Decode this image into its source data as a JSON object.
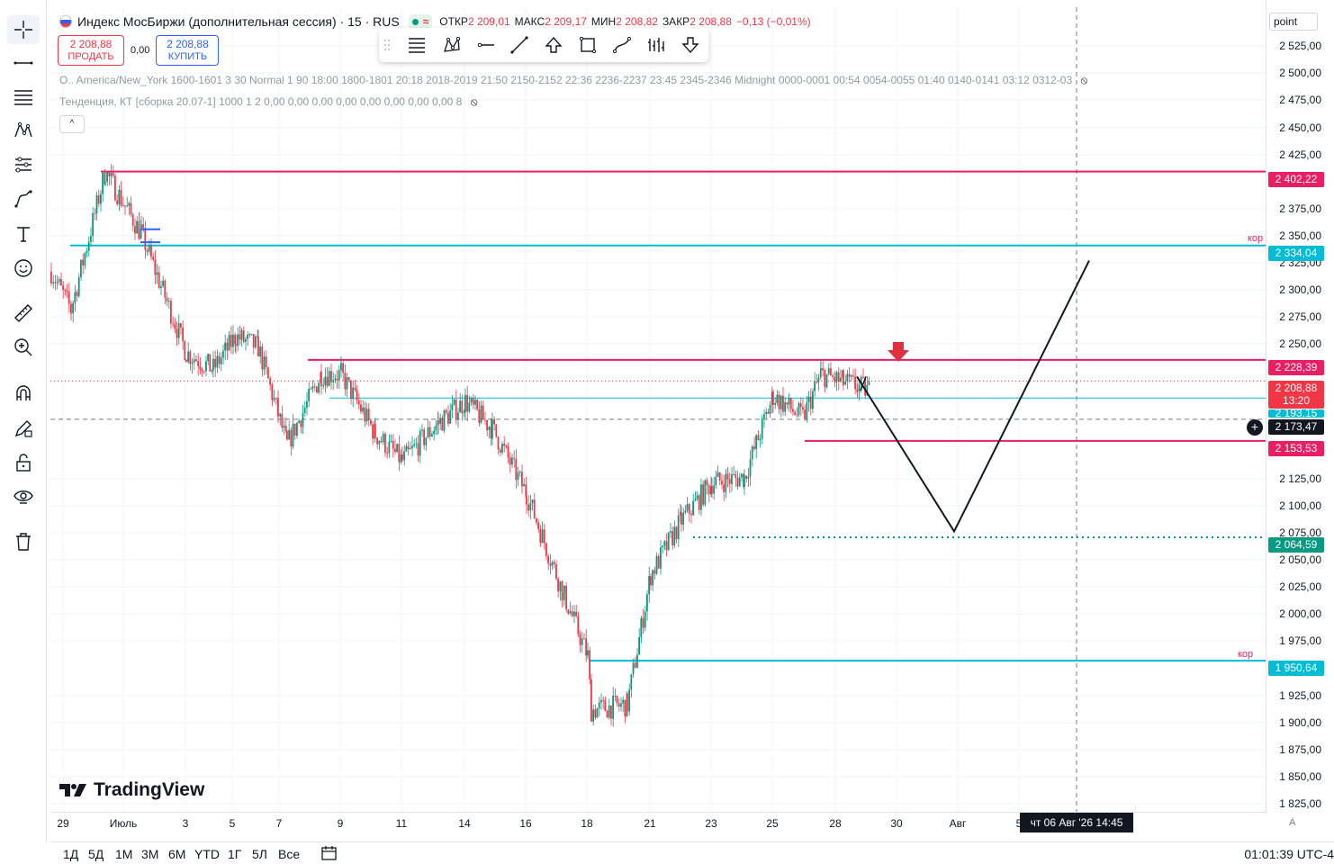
{
  "symbol": {
    "name": "Индекс МосБиржи (дополнительная сессия) · 15 · RUS",
    "open_label": "ОТКР",
    "open": "2 209,01",
    "high_label": "МАКС",
    "high": "2 209,17",
    "low_label": "МИН",
    "low": "2 208,82",
    "close_label": "ЗАКР",
    "close": "2 208,88",
    "change": "−0,13 (−0,01%)",
    "live_wave": "≈"
  },
  "trade": {
    "sell_price": "2 208,88",
    "sell_label": "ПРОДАТЬ",
    "spread": "0,00",
    "buy_price": "2 208,88",
    "buy_label": "КУПИТЬ"
  },
  "indicators": {
    "sessions": "O.. America/New_York 1600-1601 3 30 Normal 1 90 18:00 1800-1801 20:18 2018-2019 21:50 2150-2152 22:36 2236-2237 23:45 2345-2346 Midnight 0000-0001 00:54 0054-0055 01:40 0140-0141 03:12 0312-03",
    "trend": "Тенденция, КТ [сборка 20.07-1] 1000 1 2 0,00 0,00 0,00 0,00 0,00 0,00 0,00 0,00 8",
    "collapse": "^"
  },
  "price_axis": {
    "mode": "point",
    "ticks": [
      "2 525,00",
      "2 500,00",
      "2 475,00",
      "2 450,00",
      "2 425,00",
      "2 375,00",
      "2 350,00",
      "2 325,00",
      "2 300,00",
      "2 275,00",
      "2 250,00",
      "2 125,00",
      "2 100,00",
      "2 075,00",
      "2 050,00",
      "2 025,00",
      "2 000,00",
      "1 975,00",
      "1 925,00",
      "1 900,00",
      "1 875,00",
      "1 850,00",
      "1 825,00"
    ],
    "labels": {
      "level_2402": "2 402,22",
      "level_2334": "2 334,04",
      "level_2228": "2 228,39",
      "last_price": "2 208,88",
      "countdown": "13:20",
      "level_2193": "2 193,15",
      "crosshair": "2 173,47",
      "level_2153": "2 153,53",
      "level_2064": "2 064,59",
      "level_1950": "1 950,64"
    },
    "kor_label": "кор",
    "kor_label_cut": "кор"
  },
  "time_axis": {
    "labels": [
      "29",
      "Июль",
      "3",
      "5",
      "7",
      "9",
      "11",
      "14",
      "16",
      "18",
      "21",
      "23",
      "25",
      "28",
      "30",
      "Авг",
      "5"
    ],
    "cursor": "чт 06 Авг '26   14:45",
    "auto": "A"
  },
  "bottom": {
    "ranges": [
      "1Д",
      "5Д",
      "1М",
      "3М",
      "6М",
      "YTD",
      "1Г",
      "5Л",
      "Все"
    ],
    "clock": "01:01:39 UTC-4"
  },
  "logo": "TradingView",
  "colors": {
    "resistance": "#e91e63",
    "support": "#00bcd4",
    "up_candle": "#089981",
    "down_candle": "#f23645",
    "target": "#089981"
  },
  "chart_data": {
    "type": "candlestick",
    "title": "Индекс МосБиржи (дополнительная сессия) · 15 · RUS",
    "ylim": [
      1815,
      2540
    ],
    "path_points": [
      {
        "date": "Jun 29",
        "value": 2310
      },
      {
        "date": "Jun 30",
        "value": 2275
      },
      {
        "date": "Jul 1",
        "value": 2402
      },
      {
        "date": "Jul 2",
        "value": 2345
      },
      {
        "date": "Jul 3",
        "value": 2235
      },
      {
        "date": "Jul 4",
        "value": 2220
      },
      {
        "date": "Jul 5",
        "value": 2250
      },
      {
        "date": "Jul 6",
        "value": 2240
      },
      {
        "date": "Jul 7",
        "value": 2150
      },
      {
        "date": "Jul 8",
        "value": 2215
      },
      {
        "date": "Jul 9",
        "value": 2215
      },
      {
        "date": "Jul 10",
        "value": 2160
      },
      {
        "date": "Jul 11",
        "value": 2135
      },
      {
        "date": "Jul 13",
        "value": 2170
      },
      {
        "date": "Jul 14",
        "value": 2190
      },
      {
        "date": "Jul 15",
        "value": 2165
      },
      {
        "date": "Jul 16",
        "value": 2105
      },
      {
        "date": "Jul 17",
        "value": 2010
      },
      {
        "date": "Jul 18",
        "value": 1955
      },
      {
        "date": "Jul 18 late",
        "value": 1905
      },
      {
        "date": "Jul 20",
        "value": 1910
      },
      {
        "date": "Jul 21",
        "value": 2030
      },
      {
        "date": "Jul 22",
        "value": 2080
      },
      {
        "date": "Jul 23",
        "value": 2115
      },
      {
        "date": "Jul 24",
        "value": 2120
      },
      {
        "date": "Jul 25",
        "value": 2195
      },
      {
        "date": "Jul 26",
        "value": 2175
      },
      {
        "date": "Jul 27",
        "value": 2215
      },
      {
        "date": "Jul 28",
        "value": 2208
      },
      {
        "date": "Jul 28 late",
        "value": 2200
      }
    ],
    "levels": [
      {
        "value": 2402.22,
        "color": "#e91e63"
      },
      {
        "value": 2334.04,
        "color": "#00bcd4"
      },
      {
        "value": 2228.39,
        "color": "#e91e63"
      },
      {
        "value": 2193.15,
        "color": "#00bcd4"
      },
      {
        "value": 2153.53,
        "color": "#e91e63"
      },
      {
        "value": 2064.59,
        "color": "#089981"
      },
      {
        "value": 1950.64,
        "color": "#00bcd4"
      }
    ],
    "projection": [
      {
        "date": "Jul 28 late",
        "value": 2213
      },
      {
        "date": "Aug 1",
        "value": 2070
      },
      {
        "date": "Aug 6",
        "value": 2320
      }
    ],
    "last_price": 2208.88
  }
}
